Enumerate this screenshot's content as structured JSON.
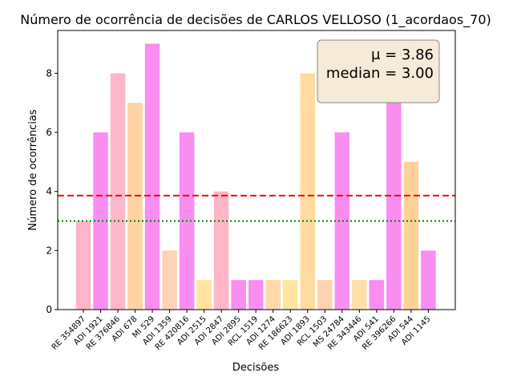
{
  "chart_data": {
    "type": "bar",
    "title": "Número de ocorrência de decisões de CARLOS VELLOSO (1_acordaos_70)",
    "xlabel": "Decisões",
    "ylabel": "Número de ocorrências",
    "ylim": [
      0,
      9.45
    ],
    "yticks": [
      0,
      2,
      4,
      6,
      8
    ],
    "categories": [
      "RE 354897",
      "ADI 1921",
      "RE 376846",
      "ADI 678",
      "MI 529",
      "ADI 1359",
      "RE 420816",
      "ADI 2515",
      "ADI 2847",
      "ADI 2895",
      "RCL 1519",
      "ADI 1274",
      "RE 186623",
      "ADI 1893",
      "RCL 1503",
      "MS 24784",
      "RE 343446",
      "ADI 541",
      "RE 396266",
      "ADI 544",
      "ADI 1145"
    ],
    "values": [
      3,
      6,
      8,
      7,
      9,
      2,
      6,
      1,
      4,
      1,
      1,
      1,
      1,
      8,
      1,
      6,
      1,
      1,
      7,
      5,
      2
    ],
    "colors": [
      "#ffb6c8",
      "#fa8df0",
      "#ffb6c8",
      "#ffd3a2",
      "#fa8df0",
      "#ffd3b8",
      "#fa8df0",
      "#ffe5a0",
      "#ffb6c8",
      "#fa8df0",
      "#fa8df0",
      "#ffd9a8",
      "#ffe5a0",
      "#ffdba0",
      "#ffd3b0",
      "#fa8df0",
      "#ffe0a8",
      "#fa8df0",
      "#fa8df0",
      "#ffd29a",
      "#fa8df0"
    ],
    "mean": 3.86,
    "median": 3.0,
    "mean_line_color": "#ff0000",
    "median_line_color": "#008000",
    "stats_box": {
      "mean_text": "μ = 3.86",
      "median_text": "median = 3.00",
      "background": "#f6ead8",
      "placement": "top-right"
    },
    "grid": false
  }
}
